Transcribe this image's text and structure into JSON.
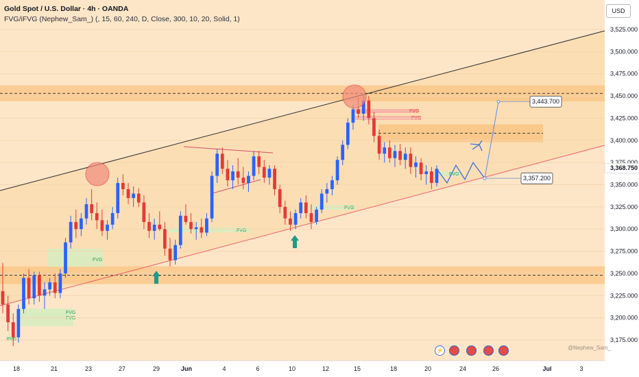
{
  "header": {
    "title": "Gold Spot / U.S. Dollar · 4h · OANDA",
    "indicator": "FVG/iFVG (Nephew_Sam_) (, 15, 60, 240, D, Close, 300, 10, 20, Solid, 1)"
  },
  "currency": "USD",
  "watermark": "@Nephew_Sam_",
  "chart_data": {
    "type": "candlestick",
    "symbol": "Gold Spot / U.S. Dollar",
    "interval": "4h",
    "ylim": [
      3150,
      3540
    ],
    "y_ticks": [
      "3,525.000",
      "3,500.000",
      "3,475.000",
      "3,450.000",
      "3,425.000",
      "3,400.000",
      "3,375.000",
      "3,350.000",
      "3,325.000",
      "3,300.000",
      "3,275.000",
      "3,250.000",
      "3,225.000",
      "3,200.000",
      "3,175.000"
    ],
    "x_ticks": [
      "18",
      "21",
      "23",
      "27",
      "29",
      "Jun",
      "4",
      "6",
      "10",
      "12",
      "15",
      "18",
      "20",
      "24",
      "26",
      "Jul",
      "3"
    ],
    "price_labels": [
      {
        "text": "3,443.700",
        "value": 3443.7
      },
      {
        "text": "3,357.200",
        "value": 3357.2
      },
      {
        "text": "3,368.750",
        "value": 3368.75
      }
    ],
    "fvg_label": "FVG",
    "zones": {
      "resistance": [
        3444,
        3462
      ],
      "support": [
        3238,
        3258
      ],
      "fvg_upper": [
        3398,
        3418
      ]
    },
    "ohlc": [
      [
        3230,
        3262,
        3205,
        3215
      ],
      [
        3215,
        3225,
        3185,
        3195
      ],
      [
        3195,
        3205,
        3168,
        3178
      ],
      [
        3178,
        3215,
        3172,
        3210
      ],
      [
        3210,
        3250,
        3205,
        3245
      ],
      [
        3245,
        3255,
        3215,
        3222
      ],
      [
        3222,
        3252,
        3215,
        3248
      ],
      [
        3248,
        3252,
        3218,
        3225
      ],
      [
        3225,
        3240,
        3210,
        3232
      ],
      [
        3232,
        3245,
        3225,
        3240
      ],
      [
        3240,
        3250,
        3222,
        3228
      ],
      [
        3228,
        3255,
        3222,
        3250
      ],
      [
        3250,
        3290,
        3245,
        3285
      ],
      [
        3285,
        3315,
        3278,
        3308
      ],
      [
        3308,
        3322,
        3290,
        3300
      ],
      [
        3300,
        3318,
        3292,
        3312
      ],
      [
        3312,
        3335,
        3305,
        3328
      ],
      [
        3328,
        3345,
        3310,
        3318
      ],
      [
        3318,
        3330,
        3300,
        3310
      ],
      [
        3310,
        3322,
        3292,
        3298
      ],
      [
        3298,
        3310,
        3288,
        3305
      ],
      [
        3305,
        3325,
        3300,
        3318
      ],
      [
        3318,
        3358,
        3312,
        3352
      ],
      [
        3352,
        3362,
        3338,
        3345
      ],
      [
        3345,
        3352,
        3328,
        3335
      ],
      [
        3335,
        3348,
        3325,
        3340
      ],
      [
        3340,
        3346,
        3325,
        3330
      ],
      [
        3330,
        3338,
        3300,
        3308
      ],
      [
        3308,
        3318,
        3290,
        3298
      ],
      [
        3298,
        3312,
        3288,
        3305
      ],
      [
        3305,
        3320,
        3298,
        3300
      ],
      [
        3300,
        3308,
        3270,
        3278
      ],
      [
        3278,
        3290,
        3258,
        3265
      ],
      [
        3265,
        3288,
        3260,
        3282
      ],
      [
        3282,
        3320,
        3278,
        3315
      ],
      [
        3315,
        3328,
        3305,
        3308
      ],
      [
        3308,
        3318,
        3295,
        3300
      ],
      [
        3300,
        3308,
        3288,
        3302
      ],
      [
        3302,
        3312,
        3290,
        3296
      ],
      [
        3296,
        3318,
        3292,
        3312
      ],
      [
        3312,
        3365,
        3308,
        3360
      ],
      [
        3360,
        3390,
        3352,
        3385
      ],
      [
        3385,
        3392,
        3362,
        3368
      ],
      [
        3368,
        3378,
        3348,
        3355
      ],
      [
        3355,
        3372,
        3345,
        3365
      ],
      [
        3365,
        3380,
        3350,
        3358
      ],
      [
        3358,
        3370,
        3345,
        3352
      ],
      [
        3352,
        3365,
        3342,
        3360
      ],
      [
        3360,
        3388,
        3355,
        3382
      ],
      [
        3382,
        3388,
        3362,
        3370
      ],
      [
        3370,
        3378,
        3352,
        3358
      ],
      [
        3358,
        3372,
        3350,
        3368
      ],
      [
        3368,
        3372,
        3338,
        3345
      ],
      [
        3345,
        3350,
        3318,
        3325
      ],
      [
        3325,
        3332,
        3305,
        3312
      ],
      [
        3312,
        3320,
        3298,
        3305
      ],
      [
        3305,
        3322,
        3300,
        3318
      ],
      [
        3318,
        3335,
        3312,
        3330
      ],
      [
        3330,
        3338,
        3312,
        3318
      ],
      [
        3318,
        3328,
        3300,
        3308
      ],
      [
        3308,
        3325,
        3305,
        3322
      ],
      [
        3322,
        3345,
        3318,
        3340
      ],
      [
        3340,
        3352,
        3330,
        3345
      ],
      [
        3345,
        3360,
        3338,
        3355
      ],
      [
        3355,
        3382,
        3350,
        3378
      ],
      [
        3378,
        3400,
        3372,
        3395
      ],
      [
        3395,
        3425,
        3390,
        3420
      ],
      [
        3420,
        3440,
        3412,
        3435
      ],
      [
        3435,
        3448,
        3425,
        3430
      ],
      [
        3430,
        3452,
        3422,
        3445
      ],
      [
        3445,
        3450,
        3418,
        3425
      ],
      [
        3425,
        3432,
        3398,
        3405
      ],
      [
        3405,
        3412,
        3378,
        3385
      ],
      [
        3385,
        3398,
        3375,
        3392
      ],
      [
        3392,
        3400,
        3375,
        3380
      ],
      [
        3380,
        3395,
        3370,
        3388
      ],
      [
        3388,
        3396,
        3372,
        3378
      ],
      [
        3378,
        3392,
        3368,
        3385
      ],
      [
        3385,
        3392,
        3362,
        3370
      ],
      [
        3370,
        3382,
        3358,
        3375
      ],
      [
        3375,
        3380,
        3355,
        3362
      ],
      [
        3362,
        3372,
        3350,
        3365
      ],
      [
        3365,
        3370,
        3345,
        3352
      ],
      [
        3352,
        3372,
        3348,
        3368
      ]
    ],
    "projection": [
      3368,
      3352,
      3372,
      3356,
      3375,
      3357.2,
      3443.7
    ]
  }
}
